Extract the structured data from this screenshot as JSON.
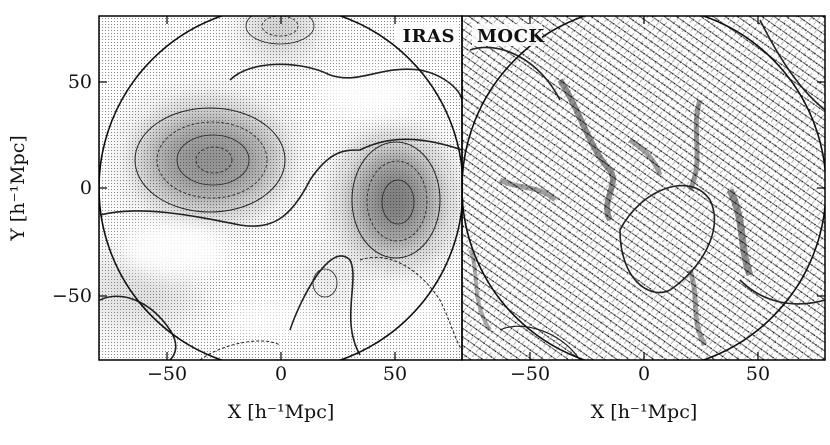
{
  "figure": {
    "panels": [
      {
        "id": "left",
        "title": "IRAS",
        "xlabel": "X [h⁻¹Mpc]",
        "ylabel": "Y [h⁻¹Mpc]",
        "x_ticks": [
          -50,
          0,
          50
        ],
        "y_ticks": [
          50,
          0,
          -50
        ],
        "xlim": [
          -80,
          80
        ],
        "ylim": [
          -80,
          80
        ]
      },
      {
        "id": "right",
        "title": "MOCK",
        "xlabel": "X [h⁻¹Mpc]",
        "x_ticks": [
          -50,
          0,
          50
        ],
        "xlim": [
          -80,
          80
        ],
        "ylim": [
          -80,
          80
        ]
      }
    ],
    "tick_labels": {
      "x": [
        "−50",
        "0",
        "50"
      ],
      "y": [
        "50",
        "0",
        "−50"
      ]
    }
  }
}
